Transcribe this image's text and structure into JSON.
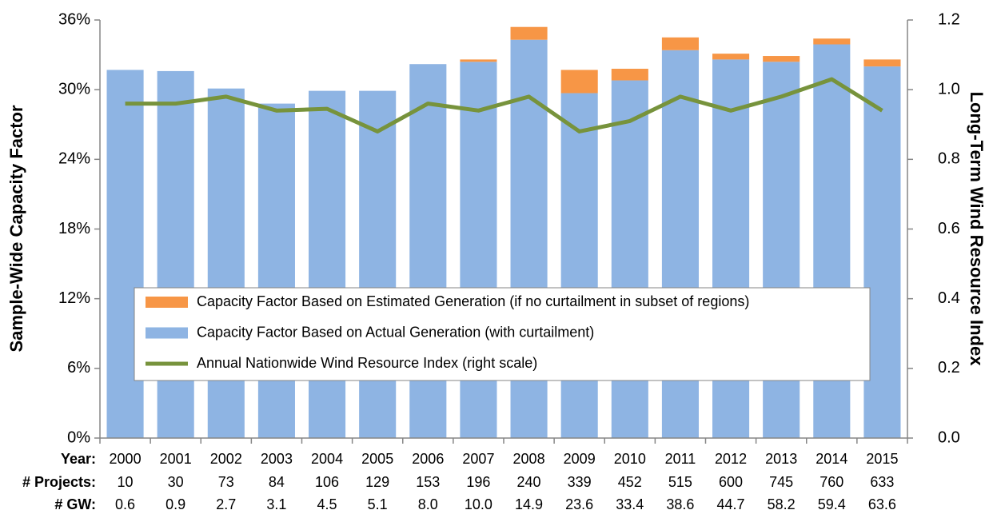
{
  "chart_data": {
    "type": "bar",
    "y_label": "Sample-Wide Capacity Factor",
    "y2_label": "Long-Term Wind Resource Index",
    "categories_label": "Year:",
    "categories": [
      "2000",
      "2001",
      "2002",
      "2003",
      "2004",
      "2005",
      "2006",
      "2007",
      "2008",
      "2009",
      "2010",
      "2011",
      "2012",
      "2013",
      "2014",
      "2015"
    ],
    "series": [
      {
        "name": "Capacity Factor Based on Actual Generation (with curtailment)",
        "color": "#8eb4e3",
        "stack": true,
        "values": [
          31.7,
          31.6,
          30.1,
          28.8,
          29.9,
          29.9,
          32.2,
          32.4,
          34.3,
          29.7,
          30.8,
          33.4,
          32.6,
          32.4,
          33.9,
          32.0
        ]
      },
      {
        "name": "Capacity Factor Based on Estimated Generation (if no curtailment in subset of regions)",
        "color": "#f79646",
        "stack": true,
        "values": [
          null,
          null,
          null,
          null,
          null,
          null,
          null,
          0.2,
          1.1,
          2.0,
          1.0,
          1.1,
          0.5,
          0.5,
          0.5,
          0.6
        ]
      },
      {
        "name": "Annual Nationwide Wind Resource Index (right scale)",
        "color": "#77933c",
        "type": "line",
        "axis": "y2",
        "values": [
          0.96,
          0.96,
          0.98,
          0.94,
          0.945,
          0.88,
          0.96,
          0.94,
          0.98,
          0.88,
          0.91,
          0.98,
          0.94,
          0.98,
          1.03,
          0.94
        ]
      }
    ],
    "legend_order": [
      1,
      0,
      2
    ],
    "ylim": [
      0,
      36
    ],
    "yticks": [
      {
        "value": 0,
        "label": "0%"
      },
      {
        "value": 6,
        "label": "6%"
      },
      {
        "value": 12,
        "label": "12%"
      },
      {
        "value": 18,
        "label": "18%"
      },
      {
        "value": 24,
        "label": "24%"
      },
      {
        "value": 30,
        "label": "30%"
      },
      {
        "value": 36,
        "label": "36%"
      }
    ],
    "y2lim": [
      0,
      1.2
    ],
    "y2ticks": [
      {
        "value": 0,
        "label": "0.0"
      },
      0.2,
      0.4,
      0.6,
      0.8,
      {
        "value": 1,
        "label": "1.0"
      },
      1.2
    ],
    "grid": false,
    "table": [
      {
        "label": "# Projects:",
        "values": [
          "10",
          "30",
          "73",
          "84",
          "106",
          "129",
          "153",
          "196",
          "240",
          "339",
          "452",
          "515",
          "600",
          "745",
          "760",
          "633"
        ]
      },
      {
        "label": "# GW:",
        "values": [
          "0.6",
          "0.9",
          "2.7",
          "3.1",
          "4.5",
          "5.1",
          "8.0",
          "10.0",
          "14.9",
          "23.6",
          "33.4",
          "38.6",
          "44.7",
          "58.2",
          "59.4",
          "63.6"
        ]
      }
    ]
  }
}
